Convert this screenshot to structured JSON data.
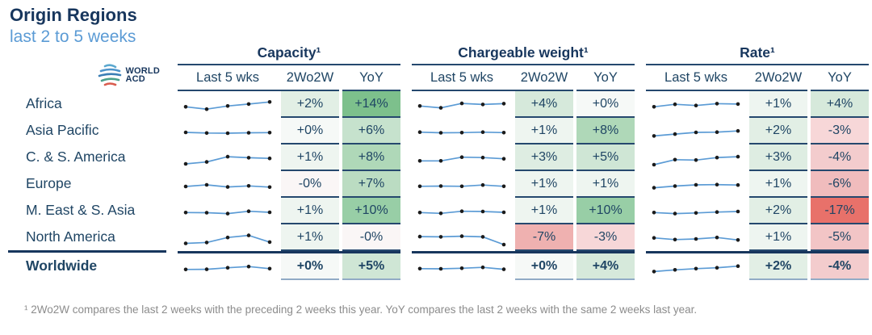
{
  "page": {
    "title": "Origin Regions",
    "subtitle": "last 2 to 5 weeks",
    "logo": {
      "line1": "WORLD",
      "line2": "ACD"
    },
    "footnote": "¹ 2Wo2W compares the last 2 weeks with the preceding 2 weeks this year. YoY compares the last 2 weeks with the same 2 weeks last year."
  },
  "columns": {
    "spark": "Last 5 wks",
    "w2": "2Wo2W",
    "yoy": "YoY"
  },
  "groups": [
    {
      "id": "capacity",
      "label": "Capacity¹"
    },
    {
      "id": "chargeable",
      "label": "Chargeable weight¹"
    },
    {
      "id": "rate",
      "label": "Rate¹"
    }
  ],
  "colors": {
    "header_navy": "#17365D",
    "text_navy": "#1F4564",
    "subtitle_blue": "#5B9BD5",
    "sparkline": "#5B9BD5",
    "spark_dot": "#1b1b1b",
    "divider": "#25486E",
    "positive_strong": "#7DC08C",
    "negative_strong": "#E8716A"
  },
  "chart_data": {
    "type": "table",
    "title": "Origin Regions",
    "subtitle": "last 2 to 5 weeks",
    "group_columns": [
      "Capacity",
      "Chargeable weight",
      "Rate"
    ],
    "sub_columns": [
      "Last 5 wks",
      "2Wo2W",
      "YoY"
    ],
    "sparkline_type": "line",
    "sparkline_points": 5,
    "sparkline_note": "5 weekly values per cell, estimated relative levels on a 0-10 scale read from pixel positions",
    "rows": [
      {
        "region": "Africa",
        "bold": false,
        "capacity": {
          "spark": [
            4.5,
            3.4,
            4.9,
            5.8,
            6.8
          ],
          "w2": "+2%",
          "w2_bg": "#E2EFE5",
          "yoy": "+14%",
          "yoy_bg": "#7DC08C"
        },
        "chargeable": {
          "spark": [
            4.9,
            4.0,
            6.1,
            5.6,
            6.0
          ],
          "w2": "+4%",
          "w2_bg": "#D6E9DB",
          "yoy": "+0%",
          "yoy_bg": "#F6F9F7"
        },
        "rate": {
          "spark": [
            4.5,
            5.7,
            5.1,
            6.0,
            5.8
          ],
          "w2": "+1%",
          "w2_bg": "#EEF5F0",
          "yoy": "+4%",
          "yoy_bg": "#D6E9DB"
        }
      },
      {
        "region": "Asia Pacific",
        "bold": false,
        "capacity": {
          "spark": [
            5.0,
            4.7,
            4.6,
            4.8,
            4.9
          ],
          "w2": "+0%",
          "w2_bg": "#F6F9F7",
          "yoy": "+6%",
          "yoy_bg": "#C6E2CD"
        },
        "chargeable": {
          "spark": [
            5.1,
            4.8,
            4.9,
            5.1,
            4.9
          ],
          "w2": "+1%",
          "w2_bg": "#EEF5F0",
          "yoy": "+8%",
          "yoy_bg": "#AFD8B8"
        },
        "rate": {
          "spark": [
            3.3,
            4.2,
            5.0,
            5.1,
            5.7
          ],
          "w2": "+2%",
          "w2_bg": "#E2EFE5",
          "yoy": "-3%",
          "yoy_bg": "#F7D7D8"
        }
      },
      {
        "region": "C. & S. America",
        "bold": false,
        "capacity": {
          "spark": [
            2.7,
            3.6,
            6.1,
            5.6,
            5.3
          ],
          "w2": "+1%",
          "w2_bg": "#EEF5F0",
          "yoy": "+8%",
          "yoy_bg": "#AFD8B8"
        },
        "chargeable": {
          "spark": [
            4.1,
            4.1,
            5.9,
            5.7,
            5.1
          ],
          "w2": "+3%",
          "w2_bg": "#DEEDE2",
          "yoy": "+5%",
          "yoy_bg": "#CFE6D5"
        },
        "rate": {
          "spark": [
            2.3,
            4.7,
            4.5,
            5.7,
            6.1
          ],
          "w2": "+3%",
          "w2_bg": "#DEEDE2",
          "yoy": "-4%",
          "yoy_bg": "#F3CCCD"
        }
      },
      {
        "region": "Europe",
        "bold": false,
        "capacity": {
          "spark": [
            4.6,
            5.4,
            4.4,
            4.9,
            4.3
          ],
          "w2": "-0%",
          "w2_bg": "#FAF6F6",
          "yoy": "+7%",
          "yoy_bg": "#BBDCC2"
        },
        "chargeable": {
          "spark": [
            4.7,
            4.8,
            4.7,
            5.3,
            4.7
          ],
          "w2": "+1%",
          "w2_bg": "#EEF5F0",
          "yoy": "+1%",
          "yoy_bg": "#EEF5F0"
        },
        "rate": {
          "spark": [
            4.0,
            4.8,
            5.4,
            5.5,
            5.3
          ],
          "w2": "+1%",
          "w2_bg": "#EEF5F0",
          "yoy": "-6%",
          "yoy_bg": "#F0BCBD"
        }
      },
      {
        "region": "M. East & S. Asia",
        "bold": false,
        "capacity": {
          "spark": [
            4.9,
            4.8,
            4.4,
            5.5,
            5.0
          ],
          "w2": "+1%",
          "w2_bg": "#EEF5F0",
          "yoy": "+10%",
          "yoy_bg": "#98CEA6"
        },
        "chargeable": {
          "spark": [
            4.9,
            4.5,
            5.5,
            5.4,
            5.0
          ],
          "w2": "+1%",
          "w2_bg": "#EEF5F0",
          "yoy": "+10%",
          "yoy_bg": "#98CEA6"
        },
        "rate": {
          "spark": [
            4.9,
            4.4,
            4.7,
            5.1,
            5.4
          ],
          "w2": "+2%",
          "w2_bg": "#E2EFE5",
          "yoy": "-17%",
          "yoy_bg": "#E8716A"
        }
      },
      {
        "region": "North America",
        "bold": false,
        "capacity": {
          "spark": [
            2.9,
            3.3,
            5.7,
            6.7,
            3.5
          ],
          "w2": "+1%",
          "w2_bg": "#EEF5F0",
          "yoy": "-0%",
          "yoy_bg": "#FAF6F6"
        },
        "chargeable": {
          "spark": [
            6.1,
            6.0,
            6.3,
            6.0,
            2.3
          ],
          "w2": "-7%",
          "w2_bg": "#EFB1B0",
          "yoy": "-3%",
          "yoy_bg": "#F7D7D8"
        },
        "rate": {
          "spark": [
            5.5,
            4.7,
            5.0,
            5.7,
            4.5
          ],
          "w2": "+1%",
          "w2_bg": "#EEF5F0",
          "yoy": "-5%",
          "yoy_bg": "#F2C5C6"
        }
      },
      {
        "region": "Worldwide",
        "bold": true,
        "capacity": {
          "spark": [
            4.3,
            4.4,
            5.1,
            5.7,
            4.7
          ],
          "w2": "+0%",
          "w2_bg": "#F6F9F7",
          "yoy": "+5%",
          "yoy_bg": "#CFE6D5"
        },
        "chargeable": {
          "spark": [
            4.7,
            4.6,
            4.9,
            5.3,
            4.4
          ],
          "w2": "+0%",
          "w2_bg": "#F6F9F7",
          "yoy": "+4%",
          "yoy_bg": "#D6E9DB"
        },
        "rate": {
          "spark": [
            3.3,
            4.1,
            4.7,
            5.1,
            5.9
          ],
          "w2": "+2%",
          "w2_bg": "#E2EFE5",
          "yoy": "-4%",
          "yoy_bg": "#F3CCCD"
        }
      }
    ]
  }
}
